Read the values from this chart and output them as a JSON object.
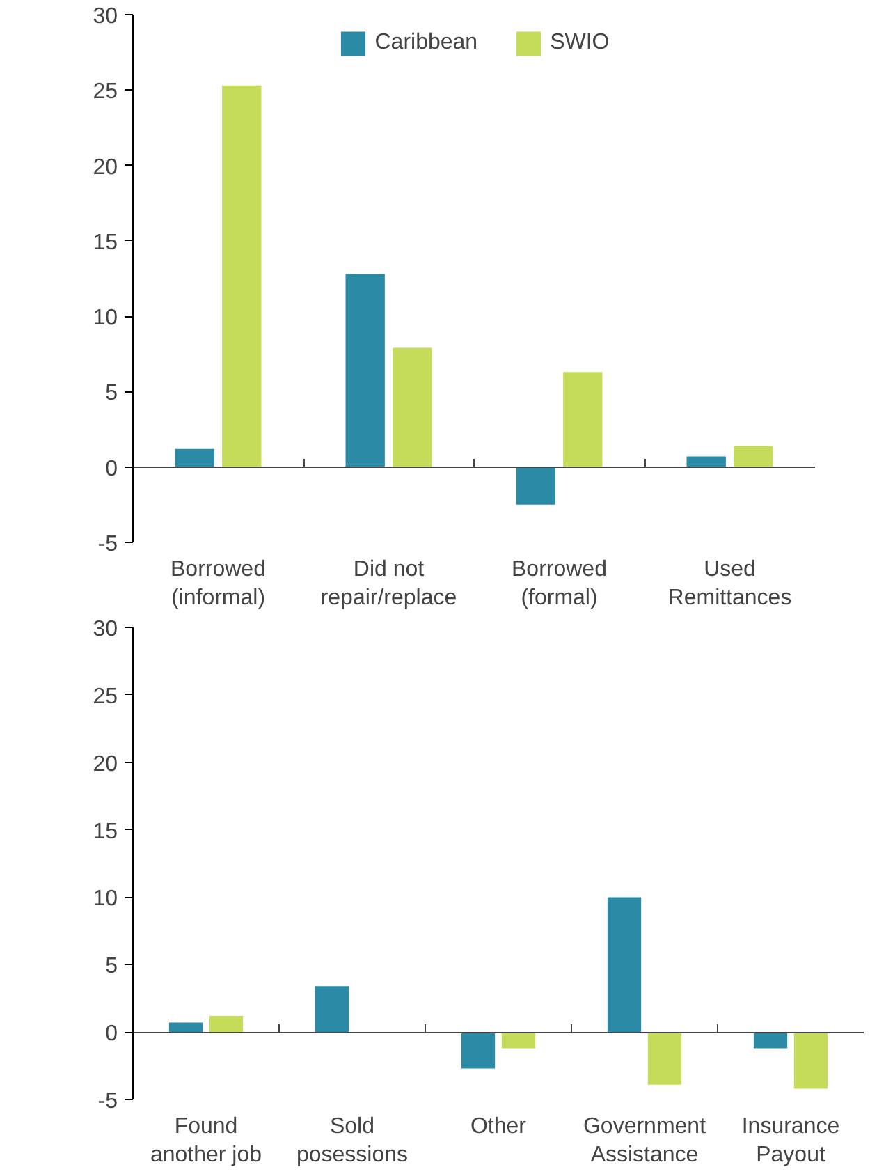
{
  "chart_data": [
    {
      "type": "bar",
      "categories": [
        "Borrowed\n(informal)",
        "Did not\nrepair/replace",
        "Borrowed\n(formal)",
        "Used\nRemittances"
      ],
      "series": [
        {
          "name": "Caribbean",
          "color": "#2b8aa6",
          "values": [
            1.2,
            12.8,
            -2.5,
            0.7
          ]
        },
        {
          "name": "SWIO",
          "color": "#c5dc5b",
          "values": [
            25.3,
            7.9,
            6.3,
            1.4
          ]
        }
      ],
      "ylim": [
        -5,
        30
      ],
      "yticks": [
        -5,
        0,
        5,
        10,
        15,
        20,
        25,
        30
      ],
      "legend": "top"
    },
    {
      "type": "bar",
      "categories": [
        "Found\nanother job",
        "Sold\nposessions",
        "Other",
        "Government\nAssistance",
        "Insurance\nPayout"
      ],
      "series": [
        {
          "color": "#2b8aa6",
          "values": [
            0.7,
            3.4,
            -2.7,
            10,
            -1.2
          ]
        },
        {
          "color": "#c5dc5b",
          "values": [
            1.2,
            null,
            -1.2,
            -3.9,
            -4.2
          ]
        }
      ],
      "ylim": [
        -5,
        30
      ],
      "yticks": [
        -5,
        0,
        5,
        10,
        15,
        20,
        25,
        30
      ],
      "legend": false
    }
  ]
}
